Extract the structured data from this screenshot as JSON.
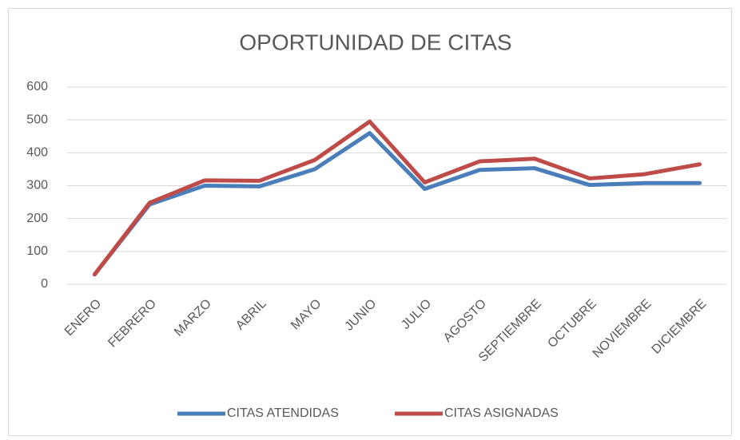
{
  "chart_data": {
    "type": "line",
    "title": "OPORTUNIDAD DE CITAS",
    "categories": [
      "ENERO",
      "FEBRERO",
      "MARZO",
      "ABRIL",
      "MAYO",
      "JUNIO",
      "JULIO",
      "AGOSTO",
      "SEPTIEMBRE",
      "OCTUBRE",
      "NOVIEMBRE",
      "DICIEMBRE"
    ],
    "series": [
      {
        "name": "CITAS ATENDIDAS",
        "color": "#4a7ebb",
        "values": [
          30,
          243,
          300,
          298,
          350,
          460,
          290,
          348,
          353,
          302,
          308,
          308
        ]
      },
      {
        "name": "CITAS ASIGNADAS",
        "color": "#be4b48",
        "values": [
          30,
          248,
          316,
          315,
          378,
          495,
          310,
          374,
          382,
          322,
          335,
          365
        ]
      }
    ],
    "ylim": [
      0,
      600
    ],
    "yticks": [
      0,
      100,
      200,
      300,
      400,
      500,
      600
    ],
    "grid": true,
    "legend": "bottom"
  }
}
